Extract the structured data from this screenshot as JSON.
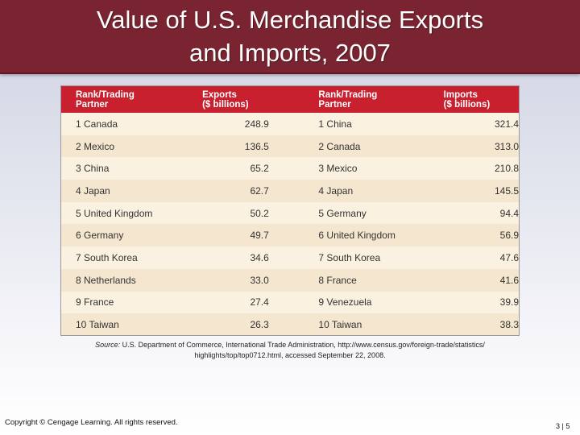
{
  "title": {
    "line1": "Value of U.S. Merchandise Exports",
    "line2": "and Imports, 2007"
  },
  "table": {
    "headers": {
      "exports_partner_l1": "Rank/Trading",
      "exports_partner_l2": "Partner",
      "exports_value_l1": "Exports",
      "exports_value_l2": "($ billions)",
      "imports_partner_l1": "Rank/Trading",
      "imports_partner_l2": "Partner",
      "imports_value_l1": "Imports",
      "imports_value_l2": "($ billions)"
    },
    "rows": [
      {
        "exp_partner": "1 Canada",
        "exp_value": "248.9",
        "imp_partner": "1 China",
        "imp_value": "321.4"
      },
      {
        "exp_partner": "2 Mexico",
        "exp_value": "136.5",
        "imp_partner": "2 Canada",
        "imp_value": "313.0"
      },
      {
        "exp_partner": "3 China",
        "exp_value": "65.2",
        "imp_partner": "3 Mexico",
        "imp_value": "210.8"
      },
      {
        "exp_partner": "4 Japan",
        "exp_value": "62.7",
        "imp_partner": "4 Japan",
        "imp_value": "145.5"
      },
      {
        "exp_partner": "5 United Kingdom",
        "exp_value": "50.2",
        "imp_partner": "5 Germany",
        "imp_value": "94.4"
      },
      {
        "exp_partner": "6 Germany",
        "exp_value": "49.7",
        "imp_partner": "6 United Kingdom",
        "imp_value": "56.9"
      },
      {
        "exp_partner": "7 South Korea",
        "exp_value": "34.6",
        "imp_partner": "7 South Korea",
        "imp_value": "47.6"
      },
      {
        "exp_partner": "8 Netherlands",
        "exp_value": "33.0",
        "imp_partner": "8 France",
        "imp_value": "41.6"
      },
      {
        "exp_partner": "9 France",
        "exp_value": "27.4",
        "imp_partner": "9 Venezuela",
        "imp_value": "39.9"
      },
      {
        "exp_partner": "10 Taiwan",
        "exp_value": "26.3",
        "imp_partner": "10 Taiwan",
        "imp_value": "38.3"
      }
    ]
  },
  "source": {
    "label": "Source:",
    "line1": "U.S. Department of Commerce, International Trade Administration, http://www.census.gov/foreign-trade/statistics/",
    "line2": "highlights/top/top0712.html, accessed September 22, 2008."
  },
  "footer": {
    "copyright": "Copyright © Cengage Learning. All rights reserved.",
    "page_number": "3 | 5"
  },
  "colors": {
    "title_bar": "#7a2431",
    "table_header": "#c8202f",
    "row_light": "#fbf1e0",
    "row_dark": "#f5e6cf"
  }
}
